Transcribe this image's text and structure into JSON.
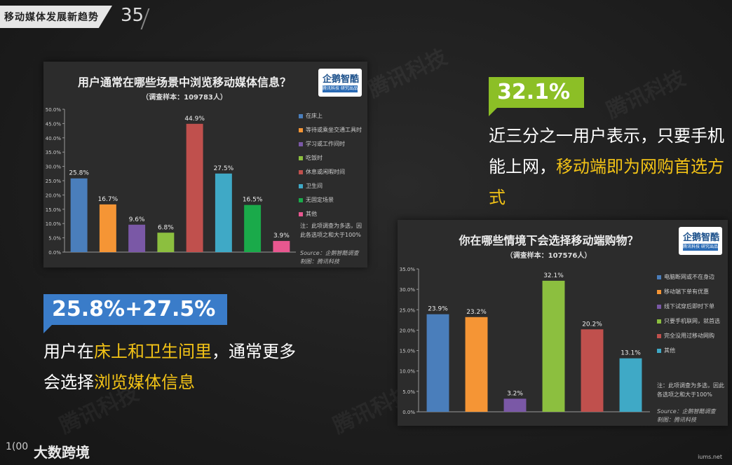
{
  "header": {
    "title": "移动媒体发展新趋势",
    "page_number": "35"
  },
  "chart1": {
    "title": "用户通常在哪些场景中浏览移动媒体信息？",
    "subtitle": "（调查样本：109783人）",
    "logo_main": "企鹅智酷",
    "logo_sub": "腾讯科技 研究出品",
    "note": "注：此项调查为多选，因此各选项之和大于100%",
    "source": "Source：企鹅智酷调查",
    "made_by": "制图：腾讯科技",
    "legend": [
      "在床上",
      "等待或乘坐交通工具时",
      "学习或工作间时",
      "吃饭时",
      "休息或闲暇时间",
      "卫生间",
      "无固定场景",
      "其他"
    ]
  },
  "chart2": {
    "title": "你在哪些情境下会选择移动端购物？",
    "subtitle": "（调查样本：107576人）",
    "logo_main": "企鹅智酷",
    "logo_sub": "腾讯科技 研究出品",
    "note": "注：此项调查为多选，因此各选项之和大于100%",
    "source": "Source：企鹅智酷调查",
    "made_by": "制图：腾讯科技",
    "legend": [
      "电脑断网或不在身边",
      "移动端下单有优惠",
      "线下试穿后即时下单",
      "只要手机联网，就首选",
      "完全没用过移动网购",
      "其他"
    ]
  },
  "highlight1": {
    "value": "32.1%",
    "text_a": "近三分之一用户表示，只要手机能上网，",
    "text_b": "移动端即为网购首选方式"
  },
  "highlight2": {
    "value": "25.8%+27.5%",
    "text_a": "用户在",
    "text_b": "床上和卫生间里",
    "text_c": "，通常更多会选择",
    "text_d": "浏览媒体信息"
  },
  "brand": {
    "icon": "1(00",
    "name": "大数跨境"
  },
  "watermark": "iums.net",
  "colors": {
    "accent_green": "#8cbf26",
    "accent_blue": "#3a7cc9",
    "highlight_yellow": "#f3c316"
  },
  "chart_data": [
    {
      "type": "bar",
      "title": "用户通常在哪些场景中浏览移动媒体信息？",
      "categories": [
        "在床上",
        "等待或乘坐交通工具时",
        "学习或工作间时",
        "吃饭时",
        "休息或闲暇时间",
        "卫生间",
        "无固定场景",
        "其他"
      ],
      "values": [
        25.8,
        16.7,
        9.6,
        6.8,
        44.9,
        27.5,
        16.5,
        3.9
      ],
      "labels": [
        "25.8%",
        "16.7%",
        "9.6%",
        "6.8%",
        "44.9%",
        "27.5%",
        "16.5%",
        "3.9%"
      ],
      "colors": [
        "#4a7ebb",
        "#f59535",
        "#7a58a6",
        "#8cbf3f",
        "#c0504d",
        "#3fa9c6",
        "#1aaa4a",
        "#e8578f"
      ],
      "ylim": [
        0,
        50
      ],
      "yticks": [
        "0.0%",
        "5.0%",
        "10.0%",
        "15.0%",
        "20.0%",
        "25.0%",
        "30.0%",
        "35.0%",
        "40.0%",
        "45.0%",
        "50.0%"
      ],
      "grid": false,
      "legend": "right"
    },
    {
      "type": "bar",
      "title": "你在哪些情境下会选择移动端购物？",
      "categories": [
        "电脑断网或不在身边",
        "移动端下单有优惠",
        "线下试穿后即时下单",
        "只要手机联网，就首选",
        "完全没用过移动网购",
        "其他"
      ],
      "values": [
        23.9,
        23.2,
        3.2,
        32.1,
        20.2,
        13.1
      ],
      "labels": [
        "23.9%",
        "23.2%",
        "3.2%",
        "32.1%",
        "20.2%",
        "13.1%"
      ],
      "colors": [
        "#4a7ebb",
        "#f59535",
        "#7a58a6",
        "#8cbf3f",
        "#c0504d",
        "#3fa9c6"
      ],
      "ylim": [
        0,
        35
      ],
      "yticks": [
        "0.0%",
        "5.0%",
        "10.0%",
        "15.0%",
        "20.0%",
        "25.0%",
        "30.0%",
        "35.0%"
      ],
      "grid": false,
      "legend": "right"
    }
  ]
}
